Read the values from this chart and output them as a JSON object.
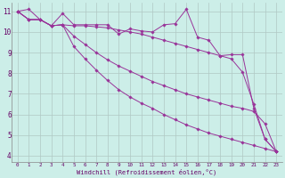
{
  "xlabel": "Windchill (Refroidissement éolien,°C)",
  "background_color": "#cceee8",
  "line_color": "#993399",
  "grid_color": "#b0c8c4",
  "ylim": [
    3.7,
    11.4
  ],
  "xlim": [
    -0.5,
    23.5
  ],
  "yticks": [
    4,
    5,
    6,
    7,
    8,
    9,
    10,
    11
  ],
  "xticks": [
    0,
    1,
    2,
    3,
    4,
    5,
    6,
    7,
    8,
    9,
    10,
    11,
    12,
    13,
    14,
    15,
    16,
    17,
    18,
    19,
    20,
    21,
    22,
    23
  ],
  "series": [
    [
      11.0,
      11.1,
      10.6,
      10.3,
      10.9,
      10.35,
      10.35,
      10.35,
      10.35,
      9.9,
      10.15,
      10.05,
      10.0,
      10.35,
      10.4,
      11.1,
      9.75,
      9.6,
      8.85,
      8.9,
      8.9,
      6.3,
      4.8,
      4.2
    ],
    [
      11.0,
      10.6,
      10.6,
      10.3,
      10.35,
      10.3,
      10.3,
      10.25,
      10.2,
      10.1,
      10.0,
      9.9,
      9.75,
      9.6,
      9.45,
      9.3,
      9.15,
      9.0,
      8.85,
      8.7,
      8.05,
      6.5,
      4.8,
      4.2
    ],
    [
      11.0,
      10.6,
      10.6,
      10.3,
      10.35,
      9.8,
      9.4,
      9.0,
      8.65,
      8.35,
      8.1,
      7.85,
      7.6,
      7.4,
      7.2,
      7.0,
      6.85,
      6.7,
      6.55,
      6.4,
      6.3,
      6.15,
      5.55,
      4.2
    ],
    [
      11.0,
      10.6,
      10.6,
      10.3,
      10.35,
      9.3,
      8.7,
      8.15,
      7.65,
      7.2,
      6.85,
      6.55,
      6.3,
      6.0,
      5.75,
      5.5,
      5.3,
      5.1,
      4.95,
      4.8,
      4.65,
      4.5,
      4.35,
      4.2
    ]
  ]
}
